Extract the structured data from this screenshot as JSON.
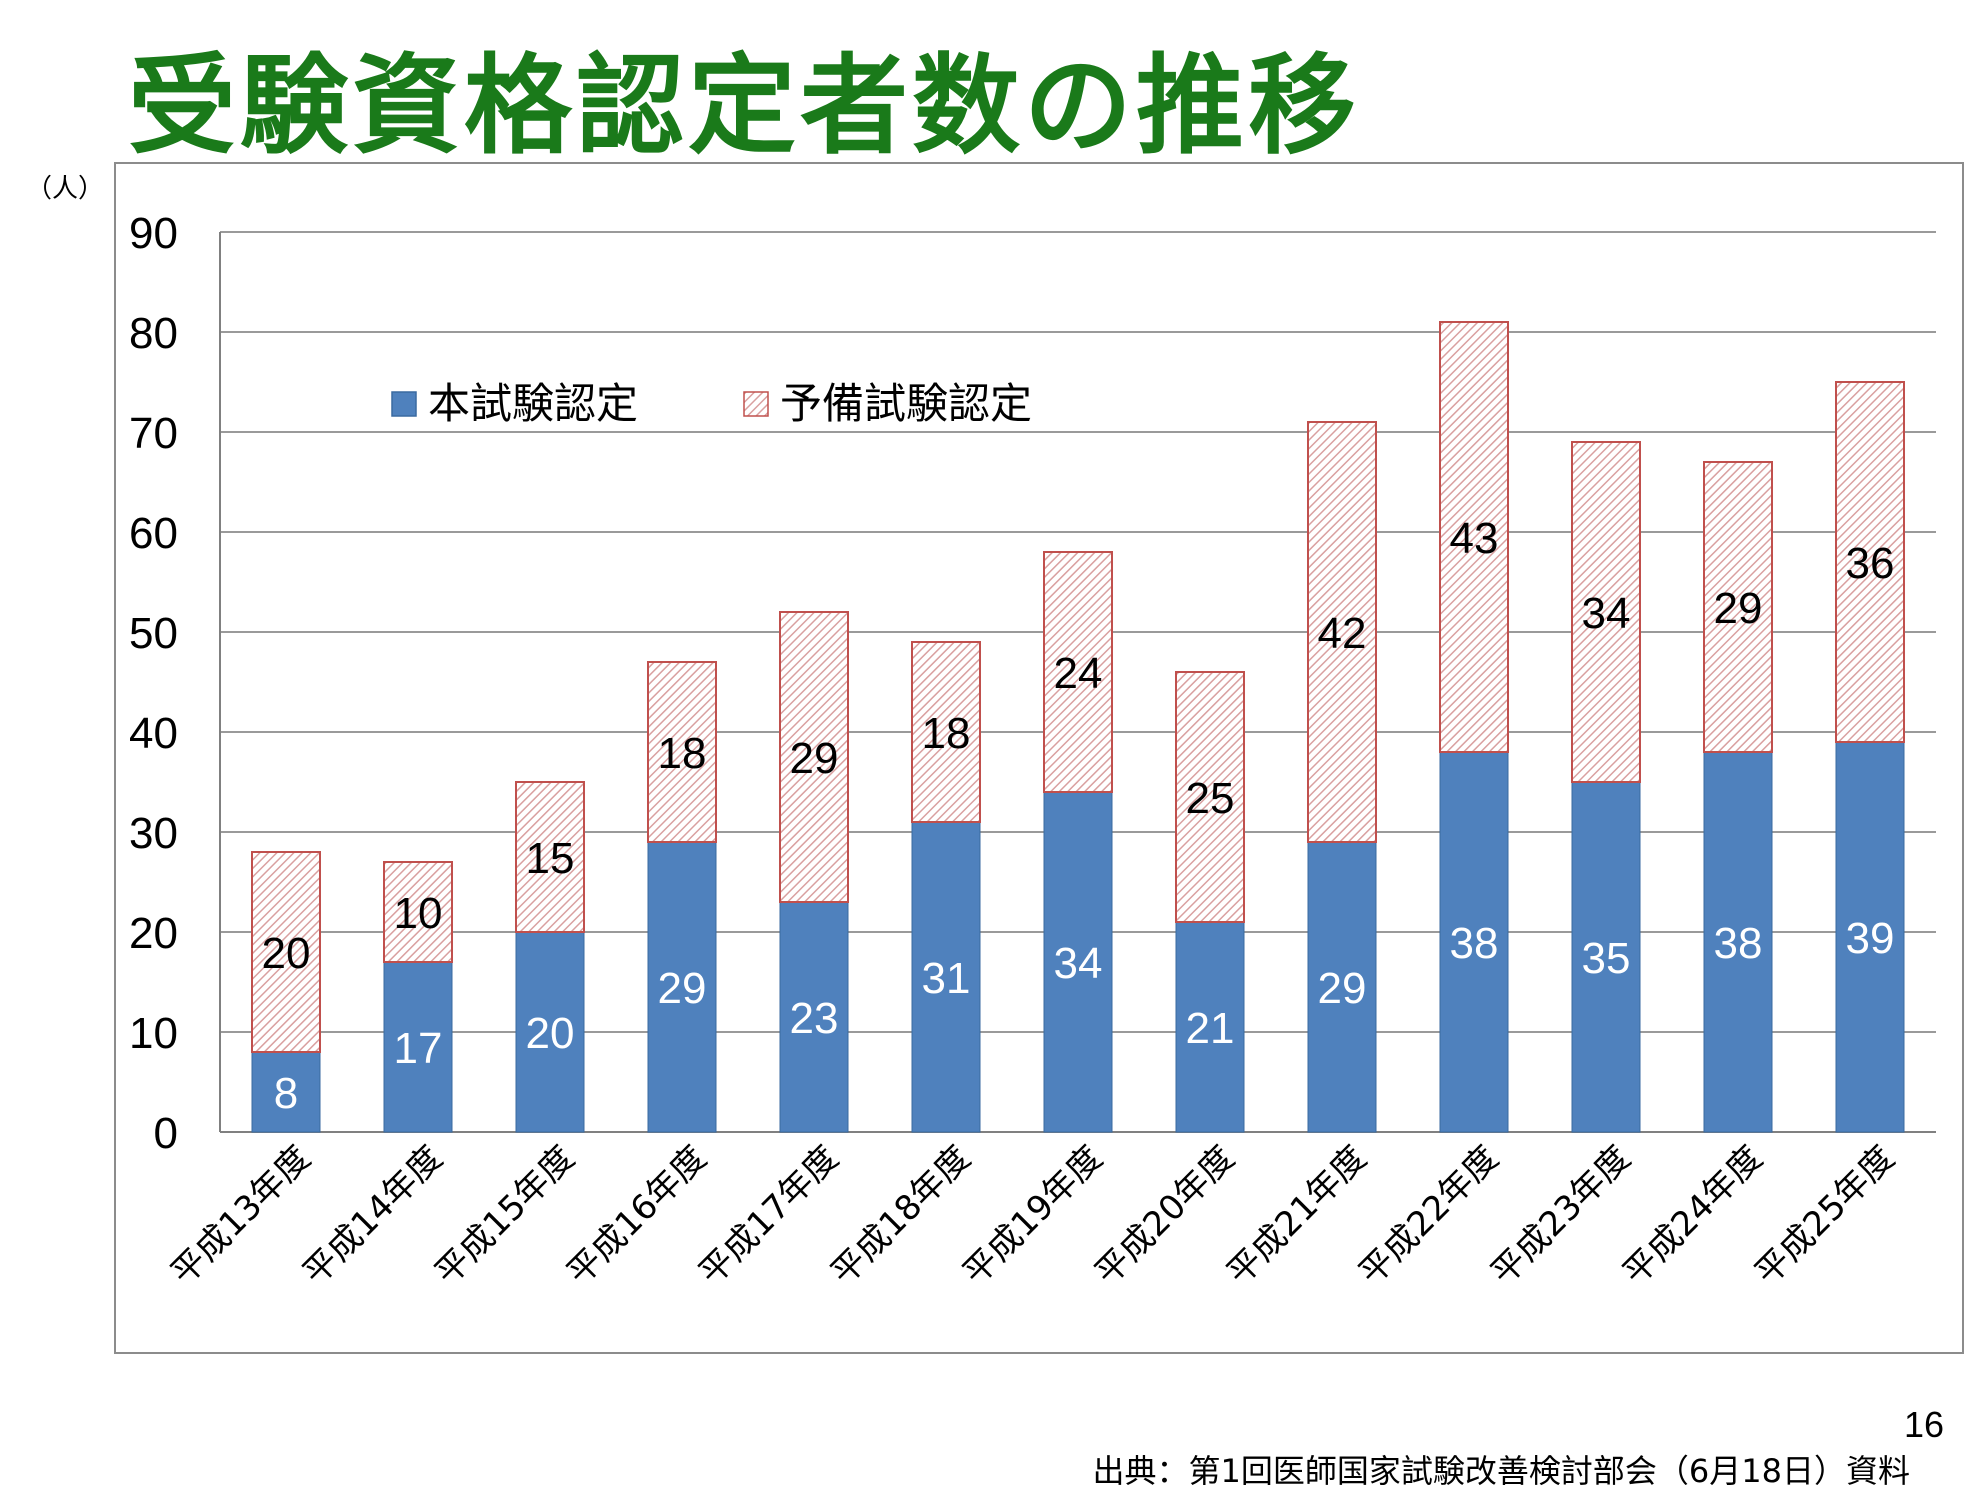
{
  "title": "受験資格認定者数の推移",
  "unit_label": "（人）",
  "page_number": "16",
  "source": "出典：第1回医師国家試験改善検討部会（6月18日）資料",
  "colors": {
    "title": "#1a7a1a",
    "main_exam": "#4f81bd",
    "prelim_exam_border": "#c0504d",
    "prelim_exam_hatch": "#d9a0a0"
  },
  "chart_data": {
    "type": "bar",
    "stacked": true,
    "categories": [
      "平成13年度",
      "平成14年度",
      "平成15年度",
      "平成16年度",
      "平成17年度",
      "平成18年度",
      "平成19年度",
      "平成20年度",
      "平成21年度",
      "平成22年度",
      "平成23年度",
      "平成24年度",
      "平成25年度"
    ],
    "series": [
      {
        "name": "本試験認定",
        "values": [
          8,
          17,
          20,
          29,
          23,
          31,
          34,
          21,
          29,
          38,
          35,
          38,
          39
        ]
      },
      {
        "name": "予備試験認定",
        "values": [
          20,
          10,
          15,
          18,
          29,
          18,
          24,
          25,
          42,
          43,
          34,
          29,
          36
        ]
      }
    ],
    "ylim": [
      0,
      90
    ],
    "yticks": [
      "0",
      "10",
      "20",
      "30",
      "40",
      "50",
      "60",
      "70",
      "80",
      "90"
    ],
    "ylabel": "（人）",
    "grid": true,
    "legend_placement": "top-left"
  }
}
